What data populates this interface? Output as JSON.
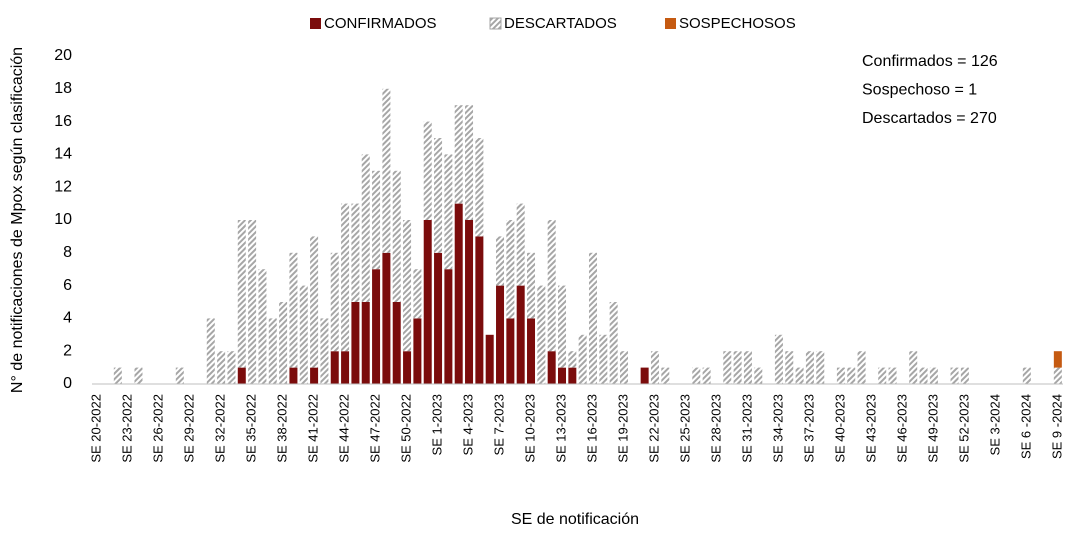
{
  "chart_data": {
    "type": "stacked_bar",
    "x_label": "SE de notificación",
    "y_label": "N° de notificaciones de Mpox según clasificación",
    "annotations": [
      "Confirmados = 126",
      "Sospechoso = 1",
      "Descartados = 270"
    ],
    "categories": [
      "SE 20-2022",
      null,
      null,
      "SE 23-2022",
      null,
      null,
      "SE 26-2022",
      null,
      null,
      "SE 29-2022",
      null,
      null,
      "SE 32-2022",
      null,
      null,
      "SE 35-2022",
      null,
      null,
      "SE 38-2022",
      null,
      null,
      "SE 41-2022",
      null,
      null,
      "SE 44-2022",
      null,
      null,
      "SE 47-2022",
      null,
      null,
      "SE 50-2022",
      null,
      null,
      "SE 1-2023",
      null,
      null,
      "SE 4-2023",
      null,
      null,
      "SE 7-2023",
      null,
      null,
      "SE 10-2023",
      null,
      null,
      "SE 13-2023",
      null,
      null,
      "SE 16-2023",
      null,
      null,
      "SE 19-2023",
      null,
      null,
      "SE 22-2023",
      null,
      null,
      "SE 25-2023",
      null,
      null,
      "SE 28-2023",
      null,
      null,
      "SE 31-2023",
      null,
      null,
      "SE 34-2023",
      null,
      null,
      "SE 37-2023",
      null,
      null,
      "SE 40-2023",
      null,
      null,
      "SE 43-2023",
      null,
      null,
      "SE 46-2023",
      null,
      null,
      "SE 49-2023",
      null,
      null,
      "SE 52-2023",
      null,
      null,
      "SE 3-2024",
      null,
      null,
      "SE 6 -2024",
      null,
      null,
      "SE 9 -2024"
    ],
    "series": [
      {
        "name": "CONFIRMADOS",
        "color": "#7b0c0c",
        "pattern": "solid",
        "values": [
          0,
          0,
          0,
          0,
          0,
          0,
          0,
          0,
          0,
          0,
          0,
          0,
          0,
          0,
          1,
          0,
          0,
          0,
          0,
          1,
          0,
          1,
          0,
          2,
          2,
          5,
          5,
          7,
          8,
          5,
          2,
          4,
          10,
          8,
          7,
          11,
          10,
          9,
          3,
          6,
          4,
          6,
          4,
          0,
          2,
          1,
          1,
          0,
          0,
          0,
          0,
          0,
          0,
          1,
          0,
          0,
          0,
          0,
          0,
          0,
          0,
          0,
          0,
          0,
          0,
          0,
          0,
          0,
          0,
          0,
          0,
          0,
          0,
          0,
          0,
          0,
          0,
          0,
          0,
          0,
          0,
          0,
          0,
          0,
          0,
          0,
          0,
          0,
          0,
          0,
          0,
          0,
          0,
          0
        ]
      },
      {
        "name": "DESCARTADOS",
        "color": "#a6a6a6",
        "pattern": "hatch",
        "values": [
          0,
          0,
          1,
          0,
          1,
          0,
          0,
          0,
          1,
          0,
          0,
          4,
          2,
          2,
          9,
          10,
          7,
          4,
          5,
          7,
          6,
          8,
          4,
          6,
          9,
          6,
          9,
          6,
          10,
          8,
          8,
          3,
          6,
          7,
          7,
          6,
          7,
          6,
          0,
          3,
          6,
          5,
          4,
          6,
          8,
          5,
          1,
          3,
          8,
          3,
          5,
          2,
          0,
          0,
          2,
          1,
          0,
          0,
          1,
          1,
          0,
          2,
          2,
          2,
          1,
          0,
          3,
          2,
          1,
          2,
          2,
          0,
          1,
          1,
          2,
          0,
          1,
          1,
          0,
          2,
          1,
          1,
          0,
          1,
          1,
          0,
          0,
          0,
          0,
          0,
          1,
          0,
          0,
          1
        ]
      },
      {
        "name": "SOSPECHOSOS",
        "color": "#c55a11",
        "pattern": "solid",
        "values": [
          0,
          0,
          0,
          0,
          0,
          0,
          0,
          0,
          0,
          0,
          0,
          0,
          0,
          0,
          0,
          0,
          0,
          0,
          0,
          0,
          0,
          0,
          0,
          0,
          0,
          0,
          0,
          0,
          0,
          0,
          0,
          0,
          0,
          0,
          0,
          0,
          0,
          0,
          0,
          0,
          0,
          0,
          0,
          0,
          0,
          0,
          0,
          0,
          0,
          0,
          0,
          0,
          0,
          0,
          0,
          0,
          0,
          0,
          0,
          0,
          0,
          0,
          0,
          0,
          0,
          0,
          0,
          0,
          0,
          0,
          0,
          0,
          0,
          0,
          0,
          0,
          0,
          0,
          0,
          0,
          0,
          0,
          0,
          0,
          0,
          0,
          0,
          0,
          0,
          0,
          0,
          0,
          0,
          1
        ]
      }
    ],
    "ylim": [
      0,
      20
    ],
    "yticks": [
      0,
      2,
      4,
      6,
      8,
      10,
      12,
      14,
      16,
      18,
      20
    ],
    "grid": false
  }
}
